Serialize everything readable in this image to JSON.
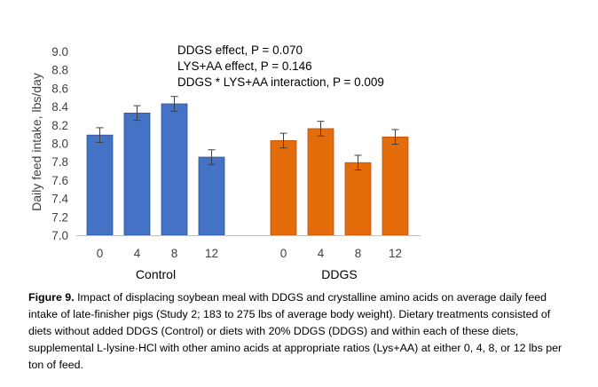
{
  "chart_data": {
    "type": "bar",
    "ylabel": "Daily feed intake, lbs/day",
    "ylim": [
      7.0,
      9.0
    ],
    "yticks": [
      "9.0",
      "8.8",
      "8.6",
      "8.4",
      "8.2",
      "8.0",
      "7.8",
      "7.6",
      "7.4",
      "7.2",
      "7.0"
    ],
    "grid": false,
    "groups": [
      {
        "name": "Control",
        "color": "#4472C4",
        "categories": [
          "0",
          "4",
          "8",
          "12"
        ],
        "values": [
          8.09,
          8.33,
          8.43,
          7.85
        ],
        "errors": [
          0.08,
          0.08,
          0.08,
          0.08
        ]
      },
      {
        "name": "DDGS",
        "color": "#E46C0A",
        "categories": [
          "0",
          "4",
          "8",
          "12"
        ],
        "values": [
          8.03,
          8.16,
          7.79,
          8.07
        ],
        "errors": [
          0.08,
          0.08,
          0.08,
          0.08
        ]
      }
    ],
    "annotations": [
      "DDGS effect, P = 0.070",
      "LYS+AA effect, P = 0.146",
      "DDGS * LYS+AA interaction, P = 0.009"
    ]
  },
  "caption": {
    "label": "Figure 9.",
    "text": " Impact of displacing soybean meal with DDGS and crystalline amino acids on average daily feed intake of late-finisher pigs (Study 2; 183 to 275 lbs of average body weight). Dietary treatments consisted of diets without added DDGS (Control) or diets with 20% DDGS (DDGS) and within each of these diets, supplemental L-lysine·HCl with other amino acids at appropriate ratios (Lys+AA) at either 0, 4, 8, or 12 lbs per ton of feed."
  }
}
